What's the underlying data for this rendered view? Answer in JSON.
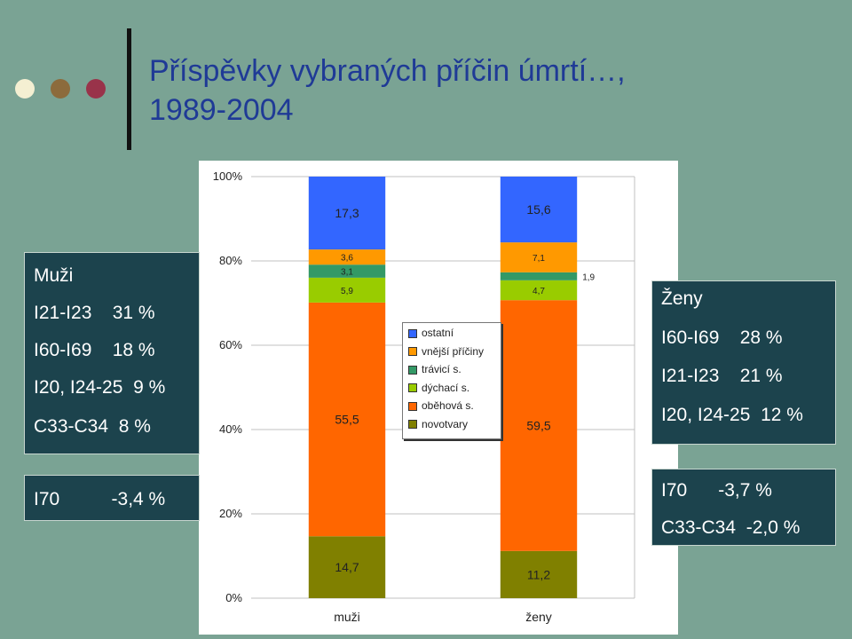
{
  "header": {
    "title_line1": "Příspěvky vybraných příčin úmrtí…,",
    "title_line2": "1989-2004",
    "dots": [
      {
        "name": "dot-cream",
        "color": "#f4efd2"
      },
      {
        "name": "dot-brown",
        "color": "#8c6b3c"
      },
      {
        "name": "dot-maroon",
        "color": "#99334a"
      }
    ]
  },
  "men_panel": {
    "title": "Muži",
    "items": [
      "I21-I23    31 %",
      "I60-I69    18 %",
      "I20, I24-25  9 %",
      "C33-C34  8 %"
    ]
  },
  "men_neg_panel": {
    "item": "I70          -3,4 %"
  },
  "women_panel": {
    "title": "Ženy",
    "items": [
      "I60-I69    28 %",
      "I21-I23    21 %",
      "I20, I24-25  12 %"
    ]
  },
  "women_neg_panel": {
    "items": [
      "I70      -3,7 %",
      "C33-C34  -2,0 %"
    ]
  },
  "chart_data": {
    "type": "bar",
    "stacked": true,
    "percent": true,
    "categories": [
      "muži",
      "ženy"
    ],
    "yticks": [
      "0%",
      "20%",
      "40%",
      "60%",
      "80%",
      "100%"
    ],
    "ylim": [
      0,
      100
    ],
    "grid": true,
    "legend_position": "center",
    "series": [
      {
        "name": "novotvary",
        "color": "#808000",
        "values": [
          14.7,
          11.2
        ],
        "labels": [
          "14,7",
          "11,2"
        ]
      },
      {
        "name": "oběhová s.",
        "color": "#ff6600",
        "values": [
          55.5,
          59.5
        ],
        "labels": [
          "55,5",
          "59,5"
        ]
      },
      {
        "name": "dýchací s.",
        "color": "#99cc00",
        "values": [
          5.9,
          4.7
        ],
        "labels": [
          "5,9",
          "4,7"
        ]
      },
      {
        "name": "trávicí s.",
        "color": "#339966",
        "values": [
          3.1,
          1.9
        ],
        "labels": [
          "3,1",
          "1,9"
        ]
      },
      {
        "name": "vnější příčiny",
        "color": "#ff9900",
        "values": [
          3.6,
          7.1
        ],
        "labels": [
          "3,6",
          "7,1"
        ]
      },
      {
        "name": "ostatní",
        "color": "#3366ff",
        "values": [
          17.3,
          15.6
        ],
        "labels": [
          "17,3",
          "15,6"
        ]
      }
    ],
    "legend_order": [
      "ostatní",
      "vnější příčiny",
      "trávicí s.",
      "dýchací s.",
      "oběhová s.",
      "novotvary"
    ]
  }
}
